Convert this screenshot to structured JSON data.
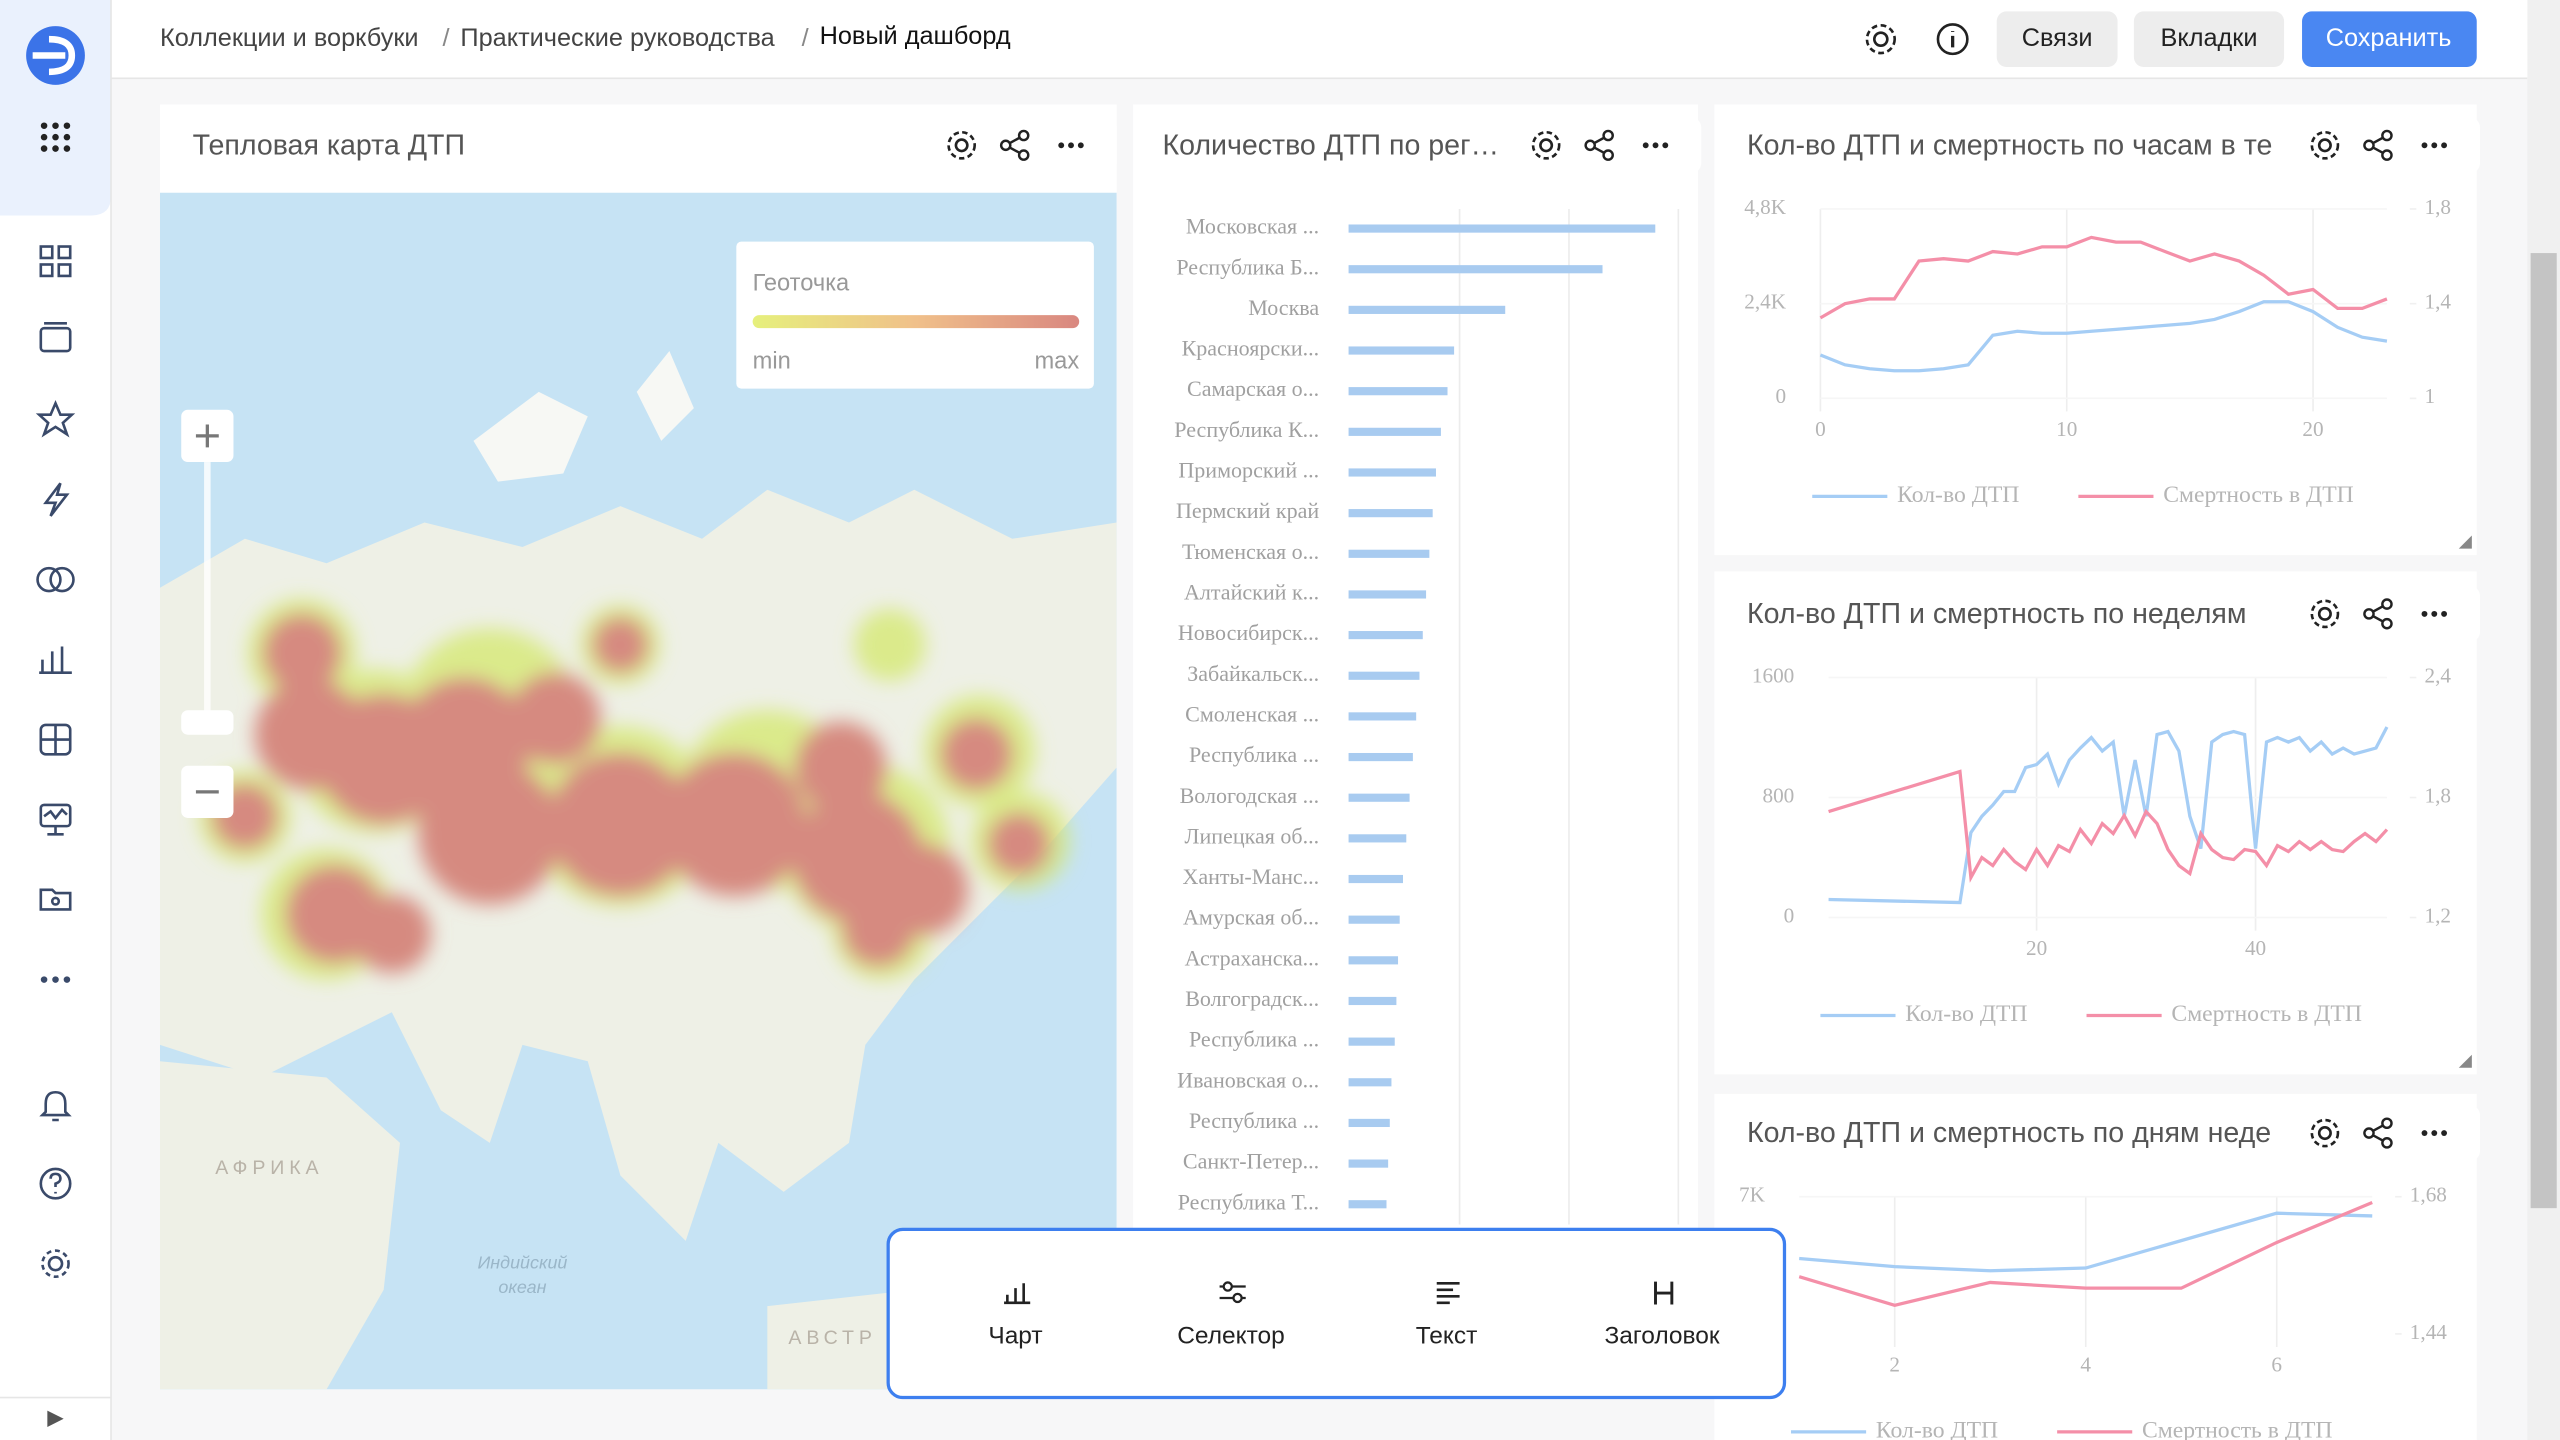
{
  "header": {
    "breadcrumbs": [
      "Коллекции и воркбуки",
      "Практические руководства",
      "Новый дашборд"
    ],
    "buttons": [
      "Связи",
      "Вкладки",
      "Сохранить"
    ]
  },
  "widgets": [
    {
      "title": "Тепловая карта ДТП",
      "legend": {
        "title": "Геоточка",
        "min": "min",
        "max": "max"
      },
      "map_labels": [
        "АФРИКА",
        "Индийский",
        "океан",
        "АВСТР"
      ]
    },
    {
      "title": "Количество ДТП по рег…",
      "chart_data": {
        "type": "bar",
        "categories": [
          "Московская ...",
          "Республика Б...",
          "Москва",
          "Красноярски...",
          "Самарская о...",
          "Республика К...",
          "Приморский ...",
          "Пермский край",
          "Тюменская о...",
          "Алтайский к...",
          "Новосибирск...",
          "Забайкальск...",
          "Смоленская ...",
          "Республика ...",
          "Вологодская ...",
          "Липецкая об...",
          "Ханты-Манс...",
          "Амурская об...",
          "Астраханска...",
          "Волгоградск...",
          "Республика ...",
          "Ивановская о...",
          "Республика ...",
          "Санкт-Петер...",
          "Республика Т..."
        ],
        "values": [
          186,
          154,
          95,
          64,
          60,
          56,
          53,
          51,
          49,
          47,
          45,
          43,
          41,
          39,
          37,
          35,
          33,
          31,
          30,
          29,
          28,
          26,
          25,
          24,
          23
        ],
        "color": "#a8cbf0",
        "xlim": [
          0,
          200
        ]
      }
    },
    {
      "title": "Кол-во ДТП и смертность по часам в те",
      "chart_data": {
        "type": "line",
        "x": [
          0,
          1,
          2,
          3,
          4,
          5,
          6,
          7,
          8,
          9,
          10,
          11,
          12,
          13,
          14,
          15,
          16,
          17,
          18,
          19,
          20,
          21,
          22,
          23
        ],
        "xlim": [
          0,
          23
        ],
        "xticks": [
          0,
          10,
          20
        ],
        "ylim": [
          0,
          4800
        ],
        "yticks": [
          0,
          {
            "value": 2400,
            "label": "2,4K"
          },
          {
            "value": 4800,
            "label": "4,8K"
          }
        ],
        "y2lim": [
          1,
          1.8
        ],
        "y2ticks": [
          1,
          {
            "value": 1.4,
            "label": "1,4"
          },
          {
            "value": 1.8,
            "label": "1,8"
          }
        ],
        "series": [
          {
            "name": "Кол-во ДТП",
            "color": "#a5cdf5",
            "values": [
              1100,
              850,
              750,
              700,
              700,
              750,
              850,
              1600,
              1700,
              1650,
              1650,
              1700,
              1750,
              1800,
              1850,
              1900,
              2000,
              2200,
              2450,
              2450,
              2200,
              1800,
              1550,
              1450
            ]
          },
          {
            "name": "Смертность в ДТП",
            "color": "#f48fa8",
            "axis": "y2",
            "values": [
              1.34,
              1.4,
              1.42,
              1.42,
              1.58,
              1.59,
              1.58,
              1.62,
              1.61,
              1.64,
              1.64,
              1.68,
              1.66,
              1.66,
              1.62,
              1.58,
              1.61,
              1.58,
              1.52,
              1.44,
              1.46,
              1.38,
              1.38,
              1.42
            ]
          }
        ]
      }
    },
    {
      "title": "Кол-во ДТП и смертность по неделям",
      "chart_data": {
        "type": "line",
        "x": [
          1,
          13,
          14,
          15,
          16,
          17,
          18,
          19,
          20,
          21,
          22,
          23,
          24,
          25,
          26,
          27,
          28,
          29,
          30,
          31,
          32,
          33,
          34,
          35,
          36,
          37,
          38,
          39,
          40,
          41,
          42,
          43,
          44,
          45,
          46,
          47,
          48,
          49,
          50,
          51,
          52
        ],
        "xlim": [
          1,
          52
        ],
        "xticks": [
          20,
          40
        ],
        "ylim": [
          0,
          1600
        ],
        "yticks": [
          0,
          800,
          1600
        ],
        "y2lim": [
          1.2,
          2.4
        ],
        "y2ticks": [
          {
            "value": 1.2,
            "label": "1,2"
          },
          {
            "value": 1.8,
            "label": "1,8"
          },
          {
            "value": 2.4,
            "label": "2,4"
          }
        ],
        "series": [
          {
            "name": "Кол-во ДТП",
            "color": "#a5cdf5",
            "values": [
              120,
              100,
              566,
              675,
              750,
              840,
              840,
              1000,
              1020,
              1090,
              890,
              1050,
              1130,
              1200,
              1110,
              1170,
              675,
              1050,
              675,
              1220,
              1240,
              1110,
              675,
              460,
              1170,
              1220,
              1240,
              1220,
              460,
              1170,
              1200,
              1170,
              1200,
              1110,
              1170,
              1090,
              1130,
              1090,
              1110,
              1130,
              1270
            ]
          },
          {
            "name": "Смертность в ДТП",
            "color": "#f48fa8",
            "axis": "y2",
            "values": [
              1.73,
              1.93,
              1.4,
              1.5,
              1.46,
              1.54,
              1.48,
              1.44,
              1.54,
              1.46,
              1.56,
              1.53,
              1.64,
              1.57,
              1.67,
              1.62,
              1.71,
              1.61,
              1.73,
              1.67,
              1.54,
              1.46,
              1.42,
              1.62,
              1.54,
              1.5,
              1.49,
              1.54,
              1.53,
              1.46,
              1.56,
              1.53,
              1.58,
              1.54,
              1.58,
              1.54,
              1.53,
              1.58,
              1.62,
              1.58,
              1.64
            ]
          }
        ]
      }
    },
    {
      "title": "Кол-во ДТП и смертность по дням неде",
      "chart_data": {
        "type": "line",
        "x": [
          1,
          2,
          3,
          4,
          5,
          6,
          7
        ],
        "xlim": [
          1,
          7
        ],
        "xticks": [
          2,
          4,
          6
        ],
        "ylim": [
          6000,
          7000
        ],
        "yticks": [
          {
            "value": 7000,
            "label": "7K"
          }
        ],
        "y2lim": [
          1.44,
          1.68
        ],
        "y2ticks": [
          {
            "value": 1.44,
            "label": "1,44"
          },
          {
            "value": 1.68,
            "label": "1,68"
          }
        ],
        "series": [
          {
            "name": "Кол-во ДТП",
            "color": "#a5cdf5",
            "values": [
              6550,
              6490,
              6460,
              6480,
              6680,
              6880,
              6860
            ]
          },
          {
            "name": "Смертность в ДТП",
            "color": "#f48fa8",
            "axis": "y2",
            "values": [
              1.54,
              1.49,
              1.53,
              1.52,
              1.52,
              1.6,
              1.67
            ]
          }
        ]
      }
    }
  ],
  "toolbar": [
    "Чарт",
    "Селектор",
    "Текст",
    "Заголовок"
  ]
}
